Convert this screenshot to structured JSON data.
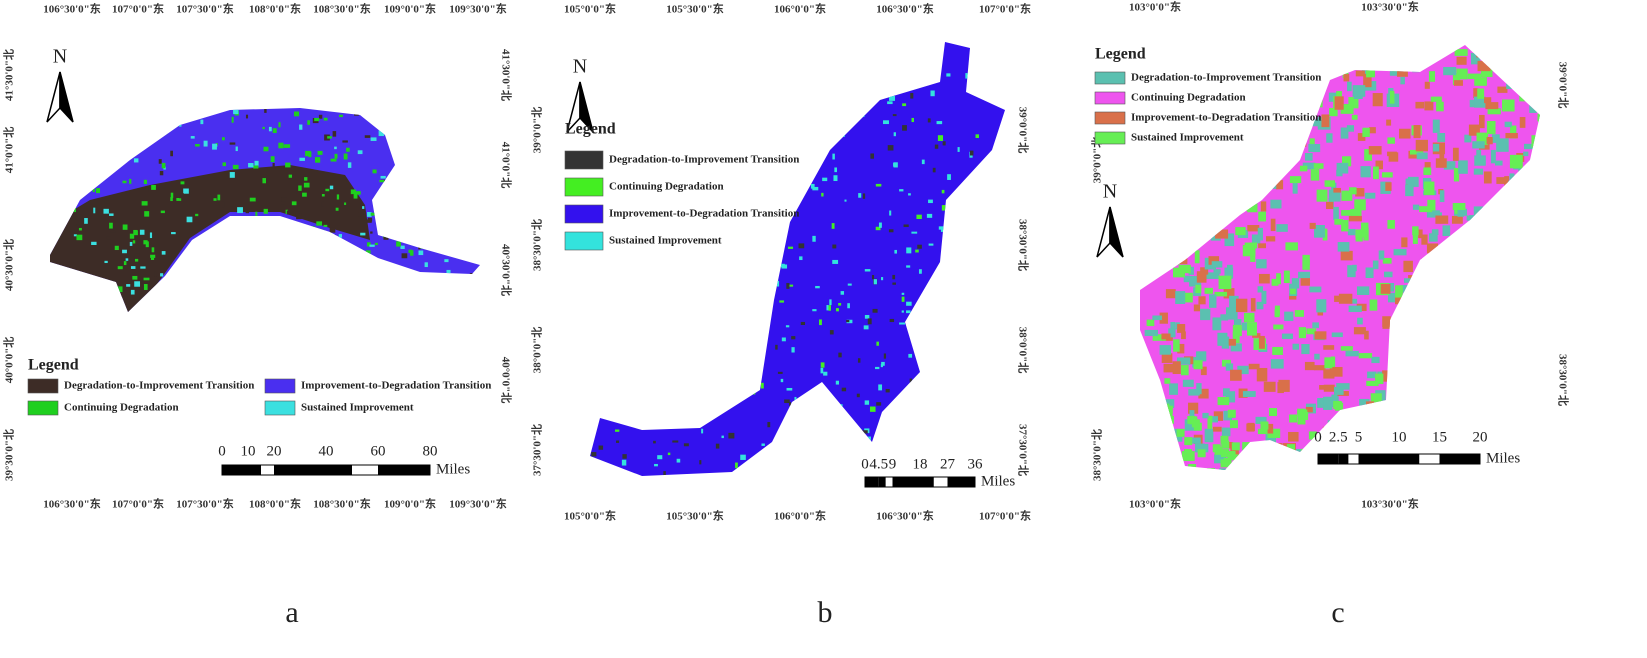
{
  "panels": [
    {
      "label": "a",
      "top_ticks": [
        "106°30'0\"东",
        "107°0'0\"东",
        "107°30'0\"东",
        "108°0'0\"东",
        "108°30'0\"东",
        "109°0'0\"东",
        "109°30'0\"东"
      ],
      "bottom_ticks": [
        "106°30'0\"东",
        "107°0'0\"东",
        "107°30'0\"东",
        "108°0'0\"东",
        "108°30'0\"东",
        "109°0'0\"东",
        "109°30'0\"东"
      ],
      "left_ticks": [
        "41°30'0\"北",
        "41°0'0\"北",
        "40°30'0\"北",
        "40°0'0\"北",
        "39°30'0\"北"
      ],
      "right_ticks": [
        "41°30'0\"北",
        "41°0'0\"北",
        "40°30'0\"北",
        "40°0'0\"北"
      ],
      "north": "N",
      "legend": {
        "title": "Legend",
        "items": [
          {
            "label": "Degradation-to-Improvement Transition",
            "color": "#3d2c26"
          },
          {
            "label": "Improvement-to-Degradation Transition",
            "color": "#4a2ff0"
          },
          {
            "label": "Continuing Degradation",
            "color": "#1fcf1f"
          },
          {
            "label": "Sustained Improvement",
            "color": "#3be0e0"
          }
        ]
      },
      "scale": {
        "ticks": [
          0,
          10,
          20,
          40,
          60,
          80
        ],
        "unit": "Miles"
      }
    },
    {
      "label": "b",
      "top_ticks": [
        "105°0'0\"东",
        "105°30'0\"东",
        "106°0'0\"东",
        "106°30'0\"东",
        "107°0'0\"东"
      ],
      "bottom_ticks": [
        "105°0'0\"东",
        "105°30'0\"东",
        "106°0'0\"东",
        "106°30'0\"东",
        "107°0'0\"东"
      ],
      "left_ticks": [
        "39°0'0\"北",
        "38°30'0\"北",
        "38°0'0\"北",
        "37°30'0\"北"
      ],
      "right_ticks": [
        "39°0'0\"北",
        "38°30'0\"北",
        "38°0'0\"北",
        "37°30'0\"北"
      ],
      "north": "N",
      "legend": {
        "title": "Legend",
        "items": [
          {
            "label": "Degradation-to-Improvement Transition",
            "color": "#333333"
          },
          {
            "label": "Continuing Degradation",
            "color": "#44ee22"
          },
          {
            "label": "Improvement-to-Degradation Transition",
            "color": "#3311ee"
          },
          {
            "label": "Sustained Improvement",
            "color": "#33e3dd"
          }
        ]
      },
      "scale": {
        "ticks": [
          0,
          4.5,
          9,
          18,
          27,
          36
        ],
        "unit": "Miles"
      }
    },
    {
      "label": "c",
      "top_ticks": [
        "103°0'0\"东",
        "103°30'0\"东"
      ],
      "bottom_ticks": [
        "103°0'0\"东",
        "103°30'0\"东"
      ],
      "left_ticks": [
        "39°0'0\"北",
        "38°30'0\"北"
      ],
      "right_ticks": [
        "39°0'0\"北",
        "38°30'0\"北"
      ],
      "north": "N",
      "legend": {
        "title": "Legend",
        "items": [
          {
            "label": "Degradation-to-Improvement Transition",
            "color": "#5bc0b0"
          },
          {
            "label": "Continuing Degradation",
            "color": "#ee55ee"
          },
          {
            "label": "Improvement-to-Degradation Transition",
            "color": "#d9704a"
          },
          {
            "label": "Sustained Improvement",
            "color": "#66ee55"
          }
        ]
      },
      "scale": {
        "ticks": [
          0,
          2.5,
          5,
          10,
          15,
          20
        ],
        "unit": "Miles"
      }
    }
  ]
}
